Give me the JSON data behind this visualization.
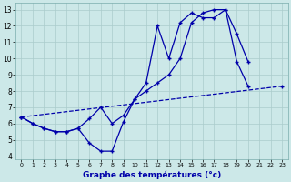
{
  "xlabel": "Graphe des températures (°c)",
  "bg_color": "#cce8e8",
  "grid_color": "#aacccc",
  "line_color": "#0000aa",
  "xlim": [
    -0.5,
    23.5
  ],
  "ylim": [
    3.8,
    13.4
  ],
  "xticks": [
    0,
    1,
    2,
    3,
    4,
    5,
    6,
    7,
    8,
    9,
    10,
    11,
    12,
    13,
    14,
    15,
    16,
    17,
    18,
    19,
    20,
    21,
    22,
    23
  ],
  "yticks": [
    4,
    5,
    6,
    7,
    8,
    9,
    10,
    11,
    12,
    13
  ],
  "series1_x": [
    0,
    1,
    2,
    3,
    4,
    5,
    6,
    7,
    8,
    9,
    10,
    11,
    12,
    13,
    14,
    15,
    16,
    17,
    18,
    19,
    20,
    21,
    22,
    23
  ],
  "series1_y": [
    6.4,
    6.0,
    5.7,
    5.5,
    5.5,
    5.7,
    4.8,
    4.3,
    4.3,
    6.1,
    7.5,
    8.5,
    12.0,
    10.0,
    12.2,
    12.8,
    12.5,
    12.5,
    13.0,
    9.8,
    8.3,
    null,
    null,
    null
  ],
  "series2_x": [
    0,
    1,
    2,
    3,
    4,
    5,
    6,
    7,
    8,
    9,
    10,
    11,
    12,
    13,
    14,
    15,
    16,
    17,
    18,
    19,
    20,
    21,
    22,
    23
  ],
  "series2_y": [
    6.4,
    6.0,
    5.7,
    5.5,
    5.5,
    5.7,
    6.3,
    7.0,
    6.0,
    6.5,
    7.5,
    8.0,
    8.5,
    9.0,
    10.0,
    12.2,
    12.8,
    13.0,
    13.0,
    11.5,
    9.8,
    null,
    null,
    null
  ],
  "series3_x": [
    0,
    23
  ],
  "series3_y": [
    6.4,
    8.3
  ]
}
